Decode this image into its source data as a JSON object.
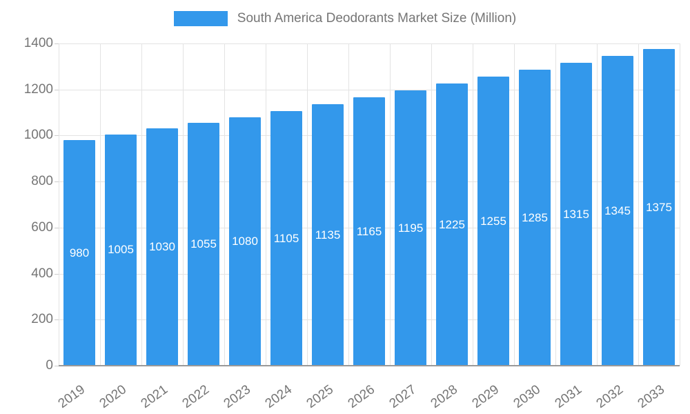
{
  "legend": {
    "label": "South America Deodorants Market Size (Million)"
  },
  "chart_data": {
    "type": "bar",
    "title": "South America Deodorants Market Size (Million)",
    "categories": [
      "2019",
      "2020",
      "2021",
      "2022",
      "2023",
      "2024",
      "2025",
      "2026",
      "2027",
      "2028",
      "2029",
      "2030",
      "2031",
      "2032",
      "2033"
    ],
    "values": [
      980,
      1005,
      1030,
      1055,
      1080,
      1105,
      1135,
      1165,
      1195,
      1225,
      1255,
      1285,
      1315,
      1345,
      1375
    ],
    "xlabel": "",
    "ylabel": "",
    "ylim": [
      0,
      1400
    ],
    "yticks": [
      0,
      200,
      400,
      600,
      800,
      1000,
      1200,
      1400
    ],
    "grid": true,
    "legend_position": "top",
    "bar_color": "#3398EB",
    "value_label_color": "#ffffff",
    "axis_text_color": "#757575"
  }
}
